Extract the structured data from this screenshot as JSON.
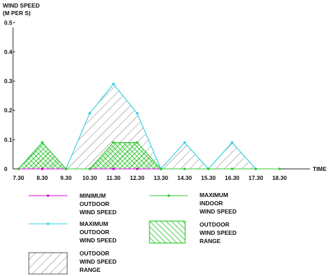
{
  "chart_data": {
    "type": "line",
    "ylabel_line1": "WIND SPEED",
    "ylabel_line2": "(M PER S)",
    "xlabel": "TIME",
    "ylim": [
      0,
      0.5
    ],
    "y_ticks": [
      "0",
      "0.1",
      "0.2",
      "0.3",
      "0.4",
      "0.5"
    ],
    "x_ticks": [
      "7.30",
      "8.30",
      "9.30",
      "10.30",
      "11.30",
      "12.30",
      "13.30",
      "14.30",
      "15.30",
      "16.30",
      "17.30",
      "18.30"
    ],
    "series": [
      {
        "name": "MINIMUM OUTDOOR WIND SPEED",
        "color": "#d400d4",
        "x": [
          "7.30",
          "8.30",
          "9.30",
          "10.30",
          "11.30",
          "12.30",
          "13.30"
        ],
        "values": [
          0,
          0,
          0,
          0,
          0,
          0,
          0
        ]
      },
      {
        "name": "MAXIMUM OUTDOOR WIND SPEED",
        "color": "#2ad0e0",
        "x": [
          "7.30",
          "8.30",
          "9.30",
          "10.30",
          "11.30",
          "12.30",
          "13.30",
          "14.30",
          "15.30",
          "16.30",
          "17.30"
        ],
        "values": [
          0,
          0.09,
          0,
          0.19,
          0.29,
          0.19,
          0,
          0.09,
          0,
          0.09,
          0
        ]
      },
      {
        "name": "MAXIMUM INDOOR WIND SPEED",
        "color": "#2ec82e",
        "x": [
          "7.30",
          "8.30",
          "9.30",
          "10.30",
          "11.30",
          "12.30",
          "13.30",
          "14.30",
          "15.30",
          "16.30",
          "17.30",
          "18.30"
        ],
        "values": [
          0,
          0.09,
          0,
          0,
          0.09,
          0.09,
          0,
          0,
          0,
          0,
          0,
          0
        ]
      }
    ],
    "legend": [
      {
        "key": "min_outdoor",
        "lines": [
          "MINIMUM",
          "OUTDOOR",
          "WIND SPEED"
        ],
        "color": "#d400d4",
        "style": "line"
      },
      {
        "key": "max_indoor",
        "lines": [
          "MAXIMUM",
          "INDOOR",
          "WIND SPEED"
        ],
        "color": "#2ec82e",
        "style": "line"
      },
      {
        "key": "max_outdoor",
        "lines": [
          "MAXIMUM",
          "OUTDOOR",
          "WIND SPEED"
        ],
        "color": "#2ad0e0",
        "style": "line"
      },
      {
        "key": "indoor_range",
        "lines": [
          "OUTDOOR",
          "WIND SPEED",
          "RANGE"
        ],
        "color": "#2ec82e",
        "style": "crosshatch"
      },
      {
        "key": "outdoor_range",
        "lines": [
          "OUTDOOR",
          "WIND SPEED",
          "RANGE"
        ],
        "color": "#555555",
        "style": "hatch"
      }
    ]
  }
}
